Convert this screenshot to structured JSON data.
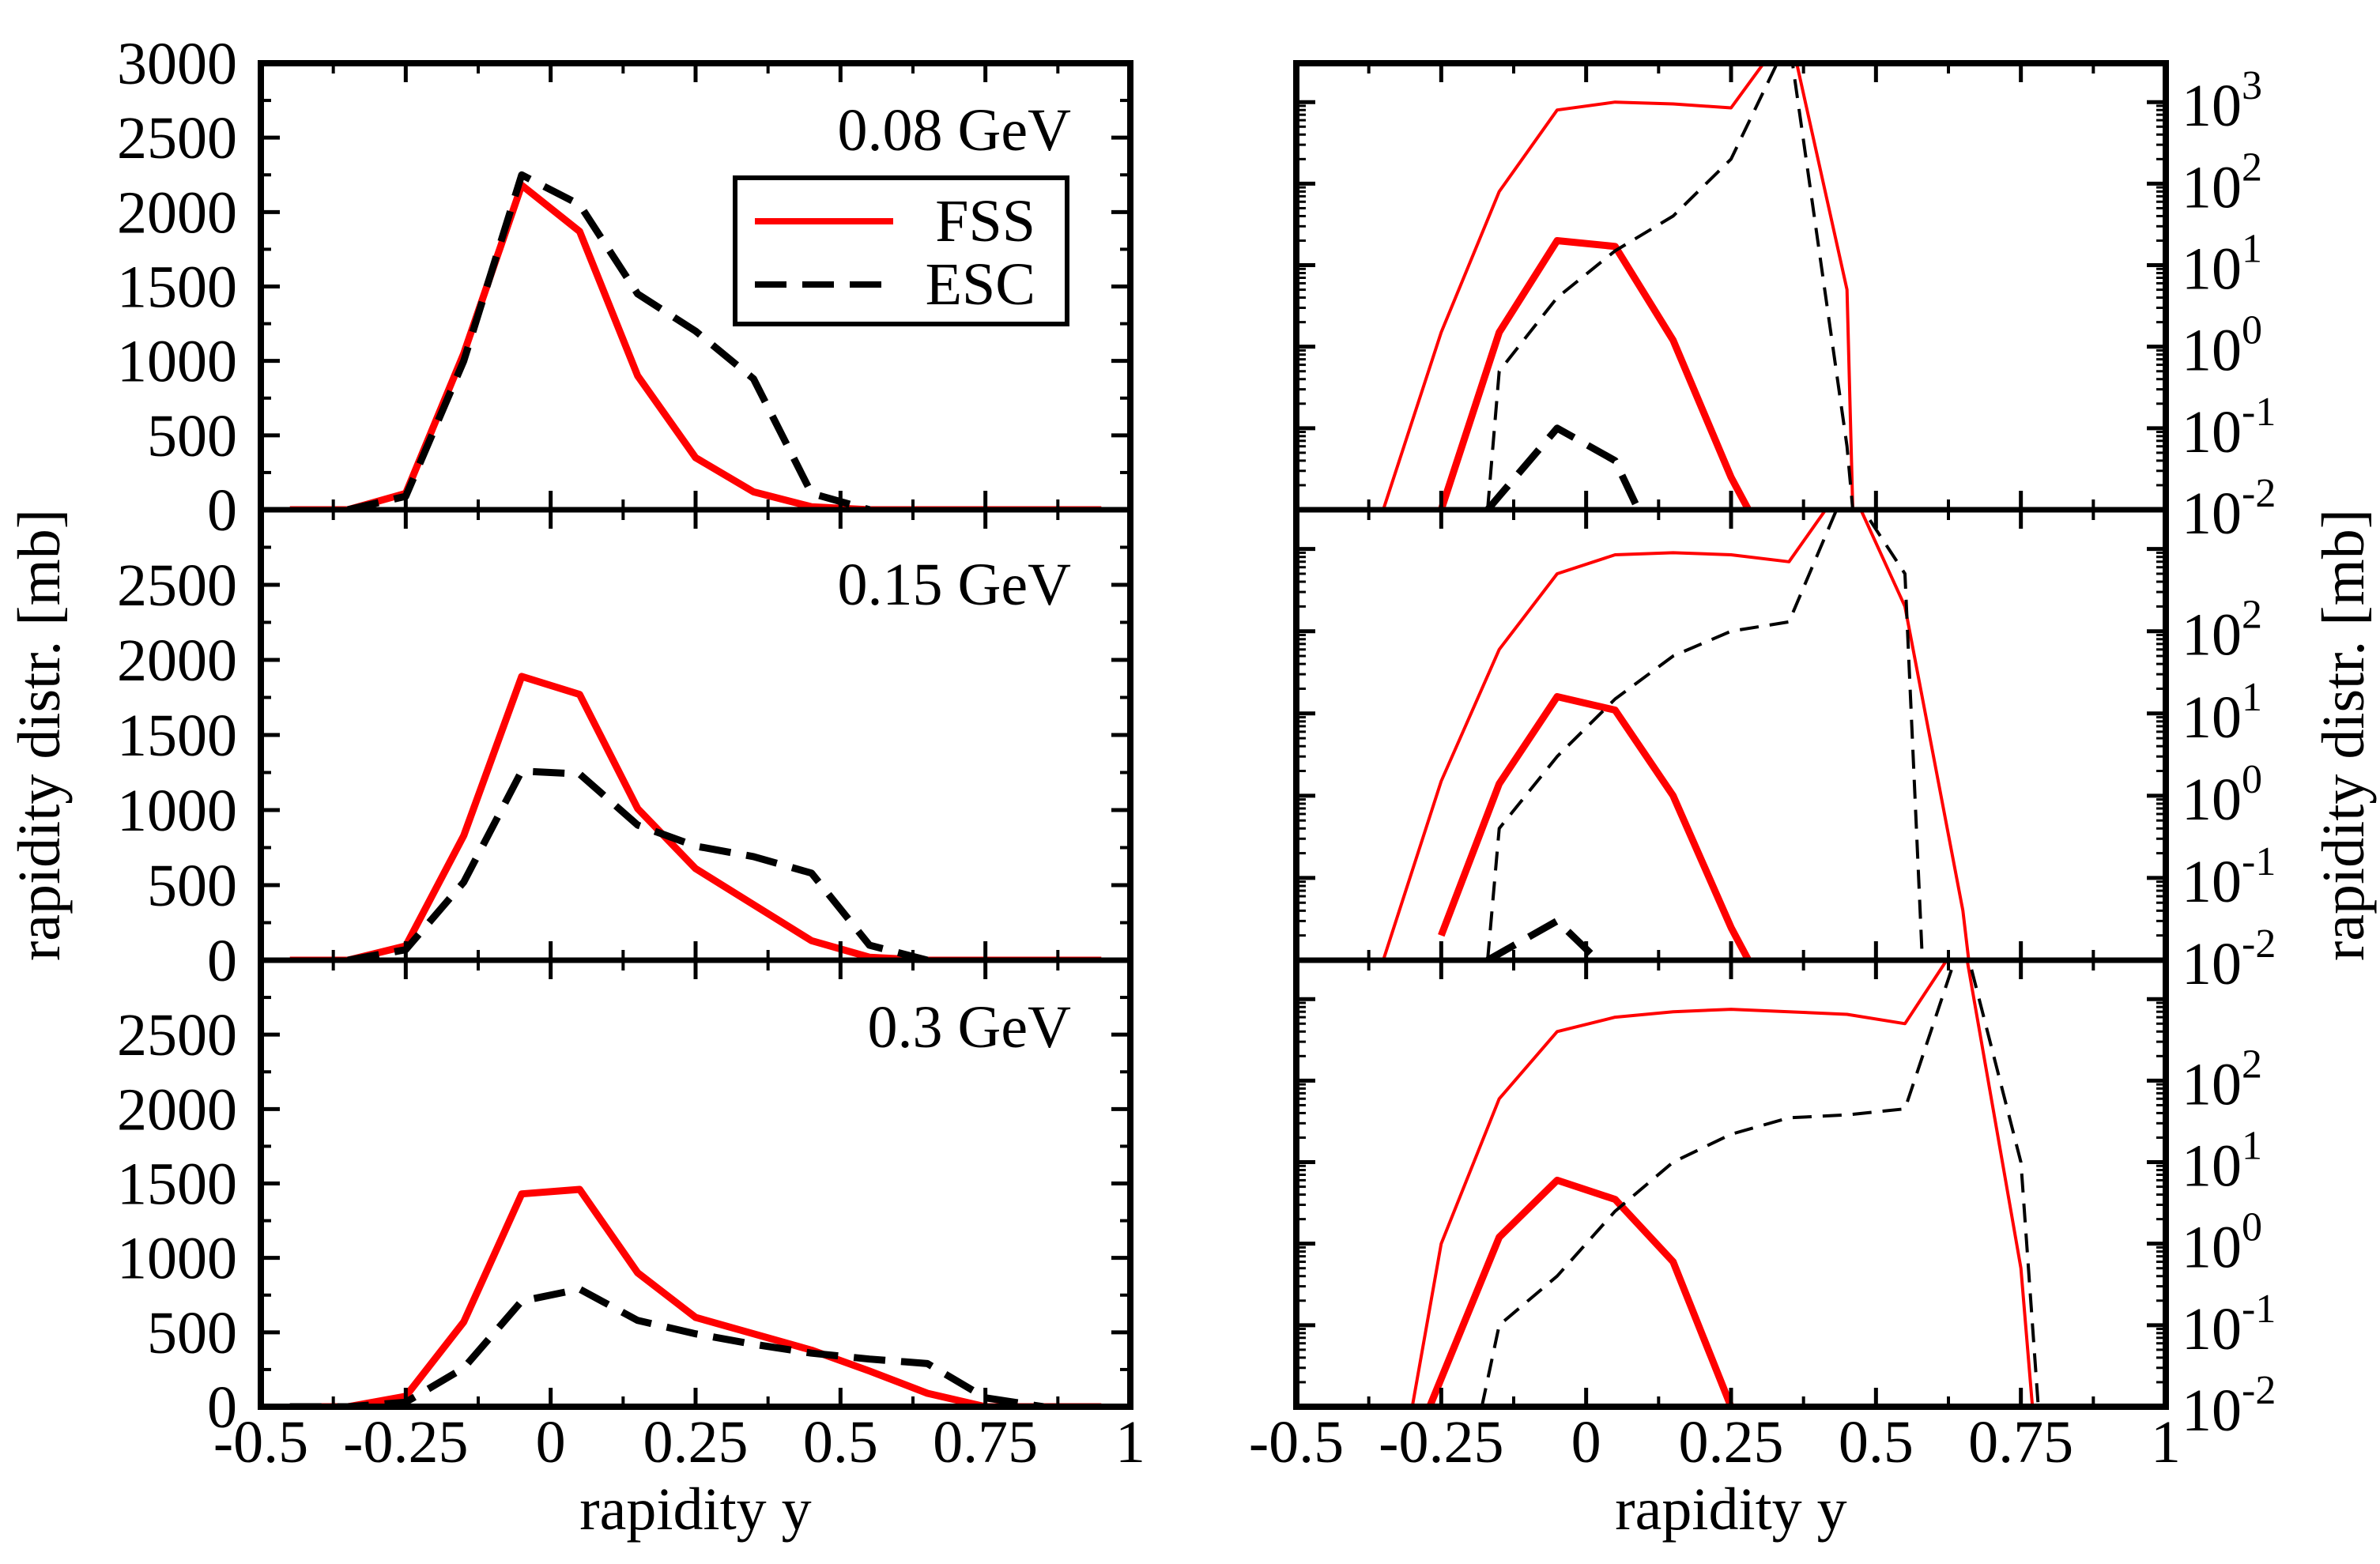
{
  "chart_data": {
    "type": "line",
    "layout": "3x2 panel grid",
    "colors": {
      "FSS": "#ff0000",
      "ESC": "#000000"
    },
    "legend": {
      "placement": "top-right of top-left panel",
      "entries": [
        {
          "name": "FSS",
          "color": "#ff0000",
          "style": "solid"
        },
        {
          "name": "ESC",
          "color": "#000000",
          "style": "dashed"
        }
      ]
    },
    "xlabel": "rapidity y",
    "ylabel_left": "rapidity distr. [mb]",
    "ylabel_right": "rapidity distr. [mb]",
    "xlim": [
      -0.5,
      1.0
    ],
    "xticks": [
      "-0.5",
      "-0.25",
      "0",
      "0.25",
      "0.5",
      "0.75",
      "1"
    ],
    "yticks_linear_top": [
      "0",
      "500",
      "1000",
      "1500",
      "2000",
      "2500",
      "3000"
    ],
    "yticks_linear_other": [
      "0",
      "500",
      "1000",
      "1500",
      "2000",
      "2500"
    ],
    "yticks_log": [
      {
        "base": "10",
        "exp": "-2"
      },
      {
        "base": "10",
        "exp": "-1"
      },
      {
        "base": "10",
        "exp": "0"
      },
      {
        "base": "10",
        "exp": "1"
      },
      {
        "base": "10",
        "exp": "2"
      },
      {
        "base": "10",
        "exp": "3"
      }
    ],
    "ylim_linear": [
      0,
      3000
    ],
    "ylim_log": [
      0.01,
      3000
    ],
    "panels": [
      {
        "id": "left-0.08",
        "scale": "linear",
        "label": "0.08 GeV",
        "series": [
          {
            "name": "FSS",
            "style": "solid-thick",
            "x": [
              -0.45,
              -0.35,
              -0.25,
              -0.15,
              -0.05,
              0.05,
              0.15,
              0.25,
              0.35,
              0.45,
              0.55,
              0.65,
              0.75,
              0.85,
              0.95
            ],
            "y": [
              0,
              0,
              110,
              1050,
              2180,
              1870,
              900,
              350,
              120,
              20,
              0,
              0,
              0,
              0,
              0
            ]
          },
          {
            "name": "ESC",
            "style": "dashed-thick",
            "x": [
              -0.35,
              -0.25,
              -0.15,
              -0.05,
              0.05,
              0.15,
              0.25,
              0.35,
              0.45,
              0.55
            ],
            "y": [
              0,
              90,
              1000,
              2250,
              2050,
              1450,
              1200,
              880,
              110,
              0
            ]
          }
        ]
      },
      {
        "id": "left-0.15",
        "scale": "linear",
        "label": "0.15 GeV",
        "series": [
          {
            "name": "FSS",
            "style": "solid-thick",
            "x": [
              -0.45,
              -0.35,
              -0.25,
              -0.15,
              -0.05,
              0.05,
              0.15,
              0.25,
              0.35,
              0.45,
              0.55,
              0.65,
              0.75,
              0.85,
              0.95
            ],
            "y": [
              0,
              0,
              95,
              830,
              1890,
              1770,
              1010,
              610,
              370,
              130,
              20,
              0,
              0,
              0,
              0
            ]
          },
          {
            "name": "ESC",
            "style": "dashed-thick",
            "x": [
              -0.35,
              -0.25,
              -0.15,
              -0.05,
              0.05,
              0.15,
              0.25,
              0.35,
              0.45,
              0.55,
              0.65
            ],
            "y": [
              0,
              70,
              520,
              1260,
              1240,
              900,
              760,
              690,
              580,
              100,
              0
            ]
          }
        ]
      },
      {
        "id": "left-0.3",
        "scale": "linear",
        "label": "0.3 GeV",
        "series": [
          {
            "name": "FSS",
            "style": "solid-thick",
            "x": [
              -0.45,
              -0.35,
              -0.25,
              -0.15,
              -0.05,
              0.05,
              0.15,
              0.25,
              0.35,
              0.45,
              0.55,
              0.65,
              0.75,
              0.85,
              0.95
            ],
            "y": [
              0,
              0,
              70,
              570,
              1430,
              1460,
              900,
              600,
              490,
              380,
              240,
              90,
              0,
              0,
              0
            ]
          },
          {
            "name": "ESC",
            "style": "dashed-thick",
            "x": [
              -0.45,
              -0.35,
              -0.25,
              -0.15,
              -0.05,
              0.05,
              0.15,
              0.25,
              0.35,
              0.45,
              0.55,
              0.65,
              0.75,
              0.85
            ],
            "y": [
              0,
              0,
              30,
              260,
              710,
              790,
              580,
              490,
              420,
              360,
              320,
              290,
              60,
              0
            ]
          }
        ]
      },
      {
        "id": "right-0.08",
        "scale": "log",
        "series": [
          {
            "name": "FSS",
            "style": "solid-thin",
            "x": [
              -0.35,
              -0.25,
              -0.15,
              -0.05,
              0.05,
              0.15,
              0.25,
              0.35,
              0.45,
              0.46
            ],
            "y": [
              0.01,
              1.5,
              80,
              800,
              1000,
              950,
              850,
              8000,
              5,
              0.01
            ]
          },
          {
            "name": "FSS",
            "style": "solid-thick",
            "x": [
              -0.25,
              -0.15,
              -0.05,
              0.05,
              0.15,
              0.25,
              0.28
            ],
            "y": [
              0.01,
              1.5,
              20,
              17,
              1.2,
              0.025,
              0.01
            ]
          },
          {
            "name": "ESC",
            "style": "dashed-thin",
            "x": [
              -0.17,
              -0.15,
              -0.05,
              0.05,
              0.15,
              0.25,
              0.35,
              0.45,
              0.46
            ],
            "y": [
              0.01,
              0.5,
              4,
              15,
              40,
              200,
              6000,
              0.06,
              0.01
            ]
          },
          {
            "name": "ESC",
            "style": "dashed-thick",
            "x": [
              -0.17,
              -0.05,
              0.05,
              0.09
            ],
            "y": [
              0.01,
              0.1,
              0.04,
              0.01
            ]
          }
        ]
      },
      {
        "id": "right-0.15",
        "scale": "log",
        "series": [
          {
            "name": "FSS",
            "style": "solid-thin",
            "x": [
              -0.35,
              -0.25,
              -0.15,
              -0.05,
              0.05,
              0.15,
              0.25,
              0.35,
              0.45,
              0.55,
              0.65,
              0.66
            ],
            "y": [
              0.01,
              1.5,
              60,
              500,
              850,
              900,
              850,
              700,
              7000,
              200,
              0.04,
              0.01
            ]
          },
          {
            "name": "FSS",
            "style": "solid-thick",
            "x": [
              -0.25,
              -0.15,
              -0.05,
              0.05,
              0.15,
              0.25,
              0.28
            ],
            "y": [
              0.02,
              1.4,
              16,
              11,
              1.0,
              0.025,
              0.01
            ]
          },
          {
            "name": "ESC",
            "style": "dashed-thin",
            "x": [
              -0.17,
              -0.15,
              -0.05,
              0.05,
              0.15,
              0.25,
              0.35,
              0.45,
              0.55,
              0.58
            ],
            "y": [
              0.01,
              0.4,
              3,
              15,
              50,
              100,
              130,
              6000,
              500,
              0.01
            ]
          },
          {
            "name": "ESC",
            "style": "dashed-thick",
            "x": [
              -0.17,
              -0.05,
              0.02
            ],
            "y": [
              0.01,
              0.03,
              0.01
            ]
          }
        ]
      },
      {
        "id": "right-0.3",
        "scale": "log",
        "series": [
          {
            "name": "FSS",
            "style": "solid-thin",
            "x": [
              -0.3,
              -0.25,
              -0.15,
              -0.05,
              0.05,
              0.15,
              0.25,
              0.35,
              0.45,
              0.55,
              0.65,
              0.75,
              0.77
            ],
            "y": [
              0.01,
              1.0,
              60,
              400,
              600,
              700,
              750,
              700,
              650,
              500,
              6000,
              0.5,
              0.01
            ]
          },
          {
            "name": "FSS",
            "style": "solid-thick",
            "x": [
              -0.27,
              -0.15,
              -0.05,
              0.05,
              0.15,
              0.25
            ],
            "y": [
              0.01,
              1.2,
              6,
              3.5,
              0.6,
              0.01
            ]
          },
          {
            "name": "ESC",
            "style": "dashed-thin",
            "x": [
              -0.18,
              -0.15,
              -0.05,
              0.05,
              0.15,
              0.25,
              0.35,
              0.45,
              0.55,
              0.65,
              0.75,
              0.78
            ],
            "y": [
              0.01,
              0.1,
              0.4,
              2.5,
              10,
              22,
              35,
              38,
              45,
              6000,
              10,
              0.01
            ]
          }
        ]
      }
    ]
  }
}
